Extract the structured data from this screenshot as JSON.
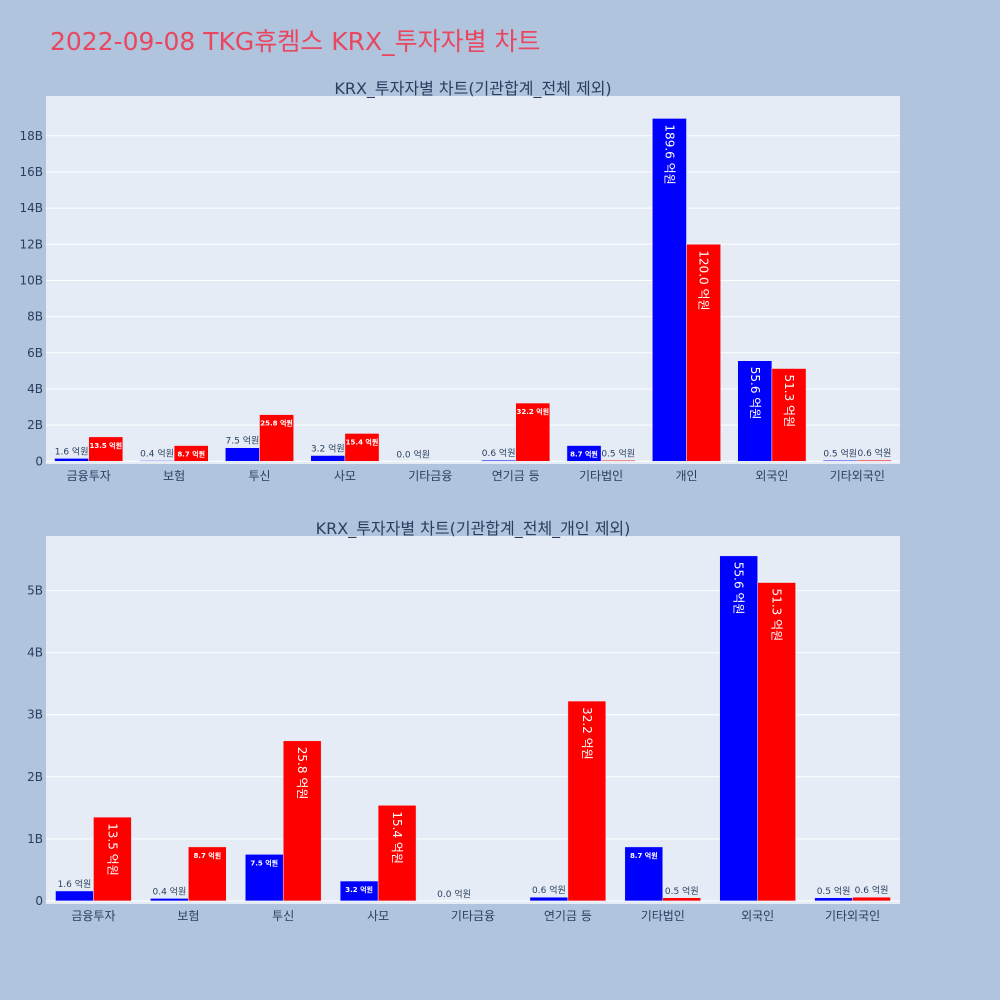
{
  "title": "2022-09-08 TKG휴켐스 KRX_투자자별 차트",
  "colors": {
    "background": "#b0c4de",
    "plot_bg": "#e5ecf6",
    "title": "#e8475f",
    "buy": "#0000ff",
    "sell": "#ff0000"
  },
  "chart_data": [
    {
      "type": "bar",
      "title": "KRX_투자자별 차트(기관합계_전체 제외)",
      "categories": [
        "금융투자",
        "보험",
        "투신",
        "사모",
        "기타금융",
        "연기금 등",
        "기타법인",
        "개인",
        "외국인",
        "기타외국인"
      ],
      "series": [
        {
          "color": "#0000ff",
          "values": [
            0.16,
            0.04,
            0.75,
            0.32,
            0.0,
            0.06,
            0.87,
            18.96,
            5.56,
            0.05
          ],
          "labels": [
            "1.6 억원",
            "0.4 억원",
            "7.5 억원",
            "3.2 억원",
            "0.0 억원",
            "0.6 억원",
            "8.7 억원",
            "189.6 억원",
            "55.6 억원",
            "0.5 억원"
          ]
        },
        {
          "color": "#ff0000",
          "values": [
            1.35,
            0.87,
            2.58,
            1.54,
            0.0,
            3.22,
            0.05,
            12.0,
            5.13,
            0.06
          ],
          "labels": [
            "13.5 억원",
            "8.7 억원",
            "25.8 억원",
            "15.4 억원",
            "",
            "32.2 억원",
            "0.5 억원",
            "120.0 억원",
            "51.3 억원",
            "0.6 억원"
          ]
        }
      ],
      "yticks": [
        0,
        2,
        4,
        6,
        8,
        10,
        12,
        14,
        16,
        18
      ],
      "ytick_labels": [
        "0",
        "2B",
        "4B",
        "6B",
        "8B",
        "10B",
        "12B",
        "14B",
        "16B",
        "18B"
      ],
      "ylim": [
        -0.15,
        20.2
      ],
      "grid": true,
      "legend": "none"
    },
    {
      "type": "bar",
      "title": "KRX_투자자별 차트(기관합계_전체_개인 제외)",
      "categories": [
        "금융투자",
        "보험",
        "투신",
        "사모",
        "기타금융",
        "연기금 등",
        "기타법인",
        "외국인",
        "기타외국인"
      ],
      "series": [
        {
          "color": "#0000ff",
          "values": [
            0.16,
            0.04,
            0.75,
            0.32,
            0.0,
            0.06,
            0.87,
            5.56,
            0.05
          ],
          "labels": [
            "1.6 억원",
            "0.4 억원",
            "7.5 억원",
            "3.2 억원",
            "0.0 억원",
            "0.6 억원",
            "8.7 억원",
            "55.6 억원",
            "0.5 억원"
          ]
        },
        {
          "color": "#ff0000",
          "values": [
            1.35,
            0.87,
            2.58,
            1.54,
            0.0,
            3.22,
            0.05,
            5.13,
            0.06
          ],
          "labels": [
            "13.5 억원",
            "8.7 억원",
            "25.8 억원",
            "15.4 억원",
            "",
            "32.2 억원",
            "0.5 억원",
            "51.3 억원",
            "0.6 억원"
          ]
        }
      ],
      "yticks": [
        0,
        1,
        2,
        3,
        4,
        5
      ],
      "ytick_labels": [
        "0",
        "1B",
        "2B",
        "3B",
        "4B",
        "5B"
      ],
      "ylim": [
        -0.05,
        5.88
      ],
      "grid": true,
      "legend": "none"
    }
  ]
}
